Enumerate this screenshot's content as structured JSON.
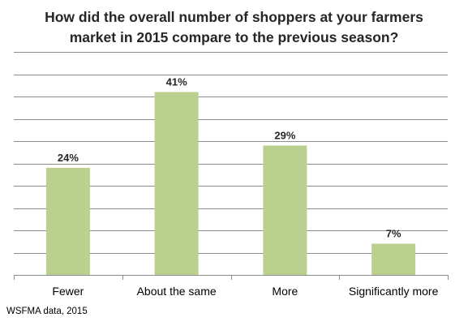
{
  "chart_data": {
    "type": "bar",
    "title_lines": [
      "How did the overall number of shoppers at your farmers",
      "market in 2015 compare to the previous season?"
    ],
    "categories": [
      "Fewer",
      "About the same",
      "More",
      "Significantly more"
    ],
    "values": [
      24,
      41,
      29,
      7
    ],
    "value_labels": [
      "24%",
      "41%",
      "29%",
      "7%"
    ],
    "ylim": [
      0,
      50
    ],
    "y_gridlines": [
      5,
      10,
      15,
      20,
      25,
      30,
      35,
      40,
      45,
      50
    ],
    "grid": true,
    "legend": "none",
    "xlabel": "",
    "ylabel": ""
  },
  "colors": {
    "bar": "#b9d08f",
    "grid": "#8c8c8c",
    "axis": "#8c8c8c",
    "text": "#262626"
  },
  "source_note": "WSFMA data, 2015"
}
